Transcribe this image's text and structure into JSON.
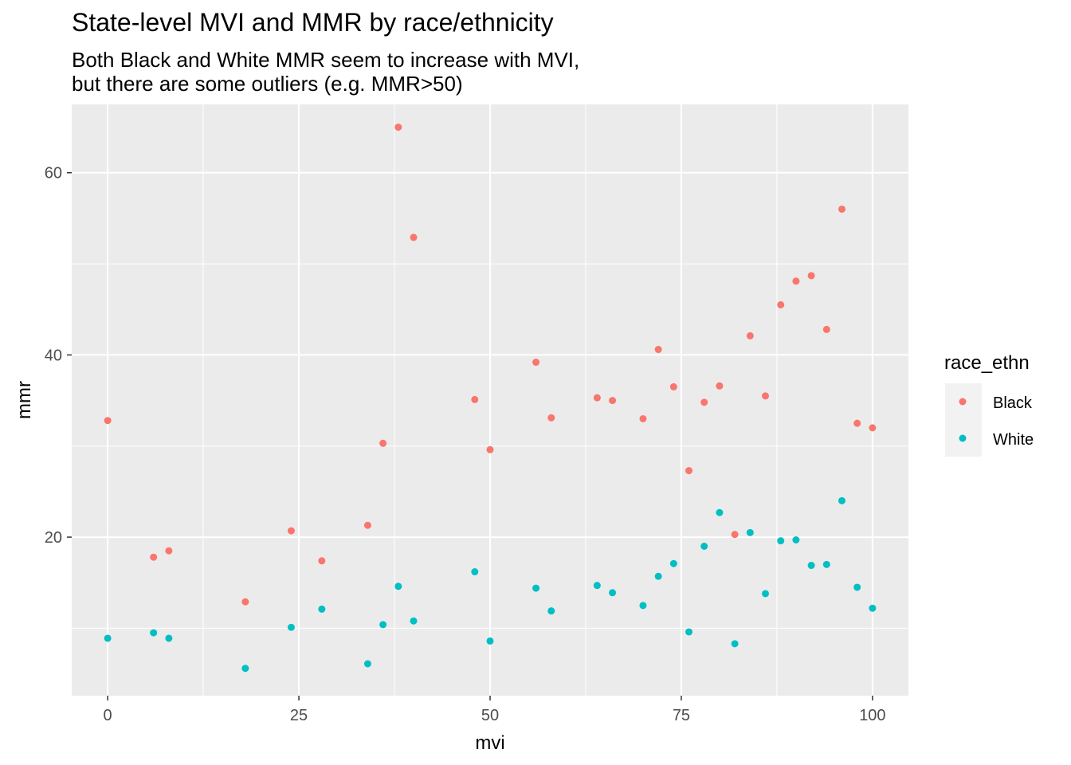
{
  "chart_data": {
    "type": "scatter",
    "title": "State-level MVI and MMR by race/ethnicity",
    "subtitle": [
      "Both Black and White MMR seem to increase with MVI,",
      "but there are some outliers (e.g. MMR>50)"
    ],
    "xlabel": "mvi",
    "ylabel": "mmr",
    "xlim": [
      -4.7,
      104.7
    ],
    "ylim": [
      2.6,
      67.5
    ],
    "xticks": [
      0,
      25,
      50,
      75,
      100
    ],
    "yticks": [
      20,
      40,
      60
    ],
    "grid": true,
    "legend": {
      "title": "race_ethn",
      "placement": "right"
    },
    "series": [
      {
        "name": "Black",
        "color": "#F8766D",
        "points": [
          [
            0,
            32.8
          ],
          [
            6,
            17.8
          ],
          [
            8,
            18.5
          ],
          [
            18,
            12.9
          ],
          [
            24,
            20.7
          ],
          [
            28,
            17.4
          ],
          [
            34,
            21.3
          ],
          [
            36,
            30.3
          ],
          [
            38,
            65.0
          ],
          [
            40,
            52.9
          ],
          [
            48,
            35.1
          ],
          [
            50,
            29.6
          ],
          [
            56,
            39.2
          ],
          [
            58,
            33.1
          ],
          [
            64,
            35.3
          ],
          [
            66,
            35.0
          ],
          [
            70,
            33.0
          ],
          [
            72,
            40.6
          ],
          [
            74,
            36.5
          ],
          [
            76,
            27.3
          ],
          [
            78,
            34.8
          ],
          [
            80,
            36.6
          ],
          [
            82,
            20.3
          ],
          [
            84,
            42.1
          ],
          [
            86,
            35.5
          ],
          [
            88,
            45.5
          ],
          [
            90,
            48.1
          ],
          [
            92,
            48.7
          ],
          [
            94,
            42.8
          ],
          [
            96,
            56.0
          ],
          [
            98,
            32.5
          ],
          [
            100,
            32.0
          ]
        ]
      },
      {
        "name": "White",
        "color": "#00BFC4",
        "points": [
          [
            0,
            8.9
          ],
          [
            6,
            9.5
          ],
          [
            8,
            8.9
          ],
          [
            18,
            5.6
          ],
          [
            24,
            10.1
          ],
          [
            28,
            12.1
          ],
          [
            34,
            6.1
          ],
          [
            36,
            10.4
          ],
          [
            38,
            14.6
          ],
          [
            40,
            10.8
          ],
          [
            48,
            16.2
          ],
          [
            50,
            8.6
          ],
          [
            56,
            14.4
          ],
          [
            58,
            11.9
          ],
          [
            64,
            14.7
          ],
          [
            66,
            13.9
          ],
          [
            70,
            12.5
          ],
          [
            72,
            15.7
          ],
          [
            74,
            17.1
          ],
          [
            76,
            9.6
          ],
          [
            78,
            19.0
          ],
          [
            80,
            22.7
          ],
          [
            82,
            8.3
          ],
          [
            84,
            20.5
          ],
          [
            86,
            13.8
          ],
          [
            88,
            19.6
          ],
          [
            90,
            19.7
          ],
          [
            92,
            16.9
          ],
          [
            94,
            17.0
          ],
          [
            96,
            24.0
          ],
          [
            98,
            14.5
          ],
          [
            100,
            12.2
          ]
        ]
      }
    ]
  }
}
